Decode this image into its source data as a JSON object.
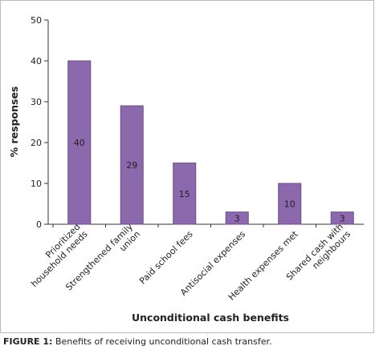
{
  "chart_data": {
    "type": "bar",
    "categories": [
      [
        "Prioritized",
        "household needs"
      ],
      [
        "Strengthened family",
        "union"
      ],
      [
        "Paid school fees"
      ],
      [
        "Antisocial expenses"
      ],
      [
        "Health expenses met"
      ],
      [
        "Shared cash with",
        "neighbours"
      ]
    ],
    "values": [
      40,
      29,
      15,
      3,
      10,
      3
    ],
    "color": "#8c68ad",
    "edge_color": "#6b4c8c",
    "ylim": [
      0,
      50
    ],
    "yticks": [
      0,
      10,
      20,
      30,
      40,
      50
    ],
    "ylabel": "% responses",
    "xlabel": "Unconditional cash benefits",
    "grid": false
  },
  "caption": {
    "label": "FIGURE 1:",
    "text": "Benefits of receiving unconditional cash transfer."
  }
}
